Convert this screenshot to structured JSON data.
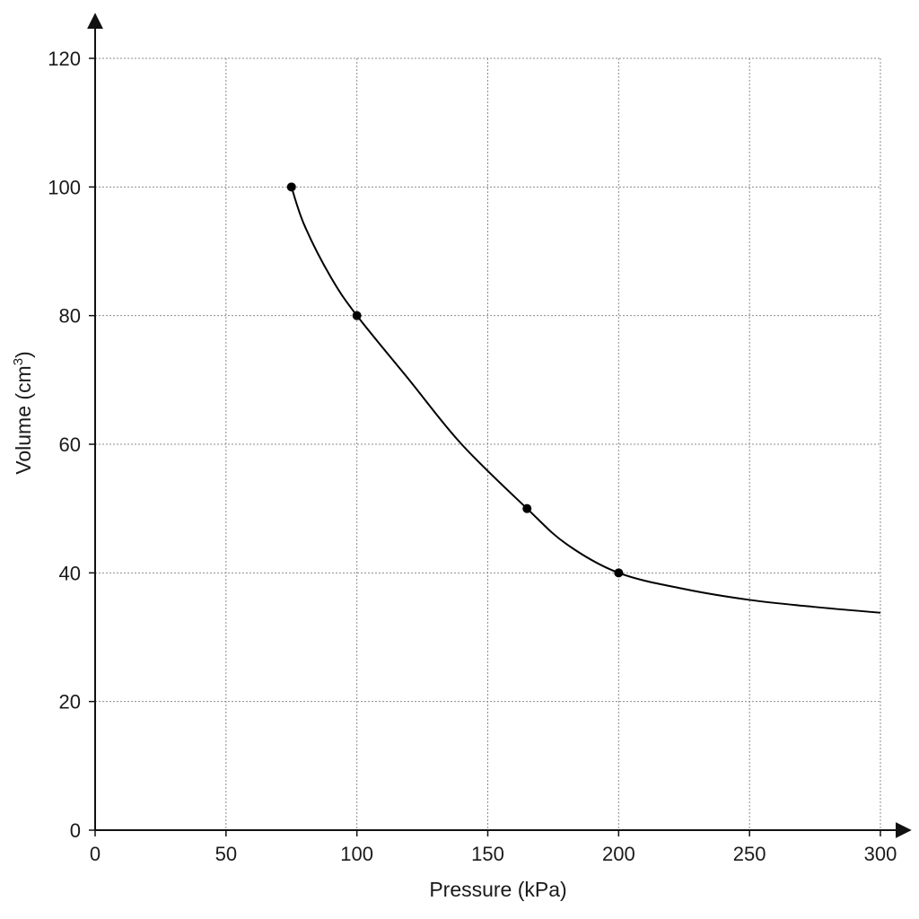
{
  "chart_data": {
    "type": "line",
    "title": "",
    "xlabel": "Pressure (kPa)",
    "ylabel_main": "Volume (cm",
    "ylabel_sup": "3",
    "ylabel_close": ")",
    "xlim": [
      0,
      300
    ],
    "ylim": [
      0,
      120
    ],
    "x_ticks": [
      0,
      50,
      100,
      150,
      200,
      250,
      300
    ],
    "y_ticks": [
      0,
      20,
      40,
      60,
      80,
      100,
      120
    ],
    "grid": true,
    "legend": "none",
    "series": [
      {
        "points": [
          {
            "x": 75,
            "y": 100
          },
          {
            "x": 100,
            "y": 80
          },
          {
            "x": 165,
            "y": 50
          },
          {
            "x": 200,
            "y": 40
          }
        ],
        "curve": [
          {
            "x": 75,
            "y": 100
          },
          {
            "x": 80,
            "y": 94
          },
          {
            "x": 90,
            "y": 86
          },
          {
            "x": 100,
            "y": 80
          },
          {
            "x": 120,
            "y": 70
          },
          {
            "x": 140,
            "y": 60
          },
          {
            "x": 165,
            "y": 50
          },
          {
            "x": 180,
            "y": 44.5
          },
          {
            "x": 200,
            "y": 40
          },
          {
            "x": 225,
            "y": 37.5
          },
          {
            "x": 250,
            "y": 35.8
          },
          {
            "x": 275,
            "y": 34.7
          },
          {
            "x": 300,
            "y": 33.8
          }
        ],
        "color": "#000000"
      }
    ]
  }
}
